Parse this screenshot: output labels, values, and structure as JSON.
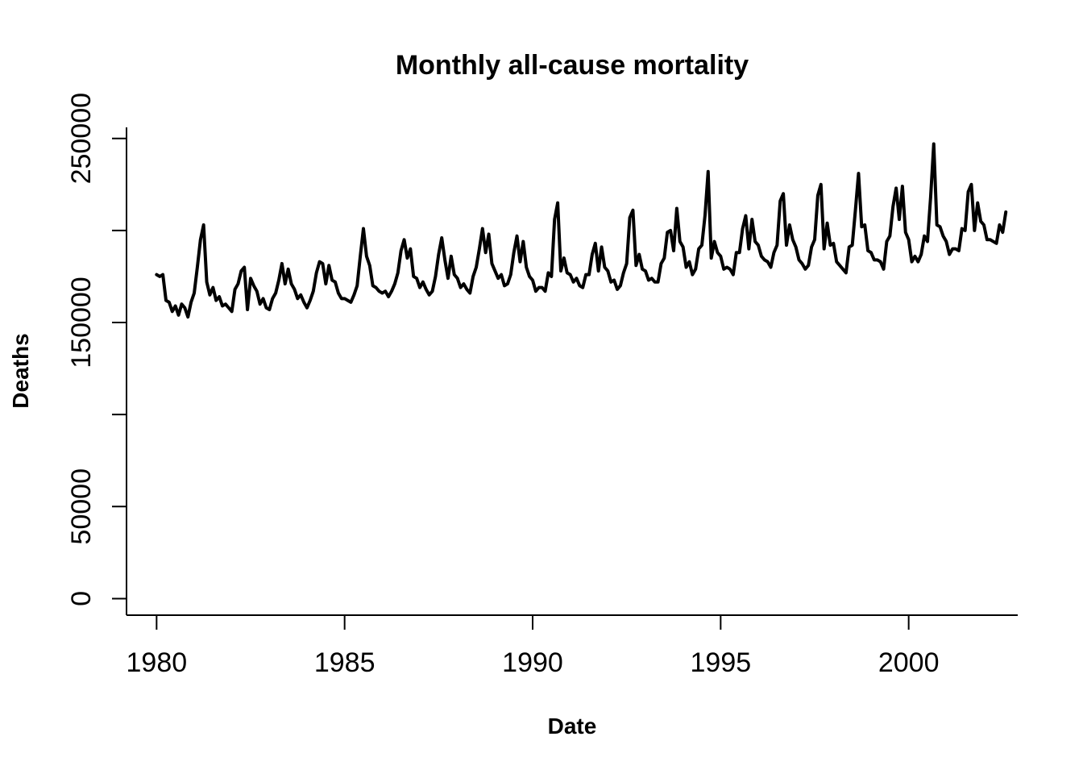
{
  "chart_data": {
    "type": "line",
    "title": "Monthly all-cause mortality",
    "xlabel": "Date",
    "ylabel": "Deaths",
    "xlim": [
      1979.2,
      2002.9
    ],
    "ylim": [
      -9000,
      256000
    ],
    "x_ticks": [
      1980,
      1985,
      1990,
      1995,
      2000
    ],
    "x_tick_labels": [
      "1980",
      "1985",
      "1990",
      "1995",
      "2000"
    ],
    "y_ticks": [
      0,
      50000,
      100000,
      150000,
      200000,
      250000
    ],
    "y_tick_labels": [
      "0",
      "50000",
      "",
      "150000",
      "",
      "250000"
    ],
    "grid": false,
    "legend": "none",
    "series_color": "#000000",
    "x_start": 1980.0,
    "x_step": 0.0833333,
    "series": [
      {
        "values": [
          176000,
          175000,
          176000,
          162000,
          161000,
          156000,
          159000,
          154000,
          160000,
          158000,
          153000,
          161000,
          166000,
          180000,
          195000,
          203000,
          172000,
          165000,
          169000,
          162000,
          164000,
          159000,
          160000,
          158000,
          156000,
          168000,
          171000,
          178000,
          180000,
          157000,
          174000,
          170000,
          167000,
          160000,
          163000,
          158000,
          157000,
          163000,
          166000,
          173000,
          182000,
          171000,
          179000,
          171000,
          168000,
          163000,
          165000,
          161000,
          158000,
          162000,
          167000,
          177000,
          183000,
          182000,
          171000,
          181000,
          173000,
          172000,
          166000,
          163000,
          163000,
          162000,
          161000,
          165000,
          170000,
          186000,
          201000,
          186000,
          181000,
          170000,
          169000,
          167000,
          166000,
          167000,
          164000,
          167000,
          171000,
          177000,
          189000,
          195000,
          185000,
          190000,
          175000,
          174000,
          169000,
          172000,
          168000,
          165000,
          167000,
          175000,
          187000,
          196000,
          184000,
          174000,
          186000,
          176000,
          174000,
          169000,
          171000,
          168000,
          166000,
          175000,
          180000,
          190000,
          201000,
          188000,
          198000,
          182000,
          178000,
          174000,
          176000,
          170000,
          171000,
          176000,
          188000,
          197000,
          183000,
          194000,
          180000,
          175000,
          173000,
          167000,
          169000,
          169000,
          167000,
          177000,
          175000,
          206000,
          215000,
          178000,
          185000,
          177000,
          176000,
          172000,
          174000,
          170000,
          169000,
          176000,
          176000,
          187000,
          193000,
          178000,
          191000,
          180000,
          178000,
          172000,
          173000,
          168000,
          170000,
          177000,
          182000,
          207000,
          211000,
          181000,
          187000,
          179000,
          178000,
          173000,
          174000,
          172000,
          172000,
          182000,
          185000,
          199000,
          200000,
          189000,
          212000,
          194000,
          191000,
          180000,
          183000,
          176000,
          179000,
          190000,
          192000,
          208000,
          232000,
          185000,
          194000,
          188000,
          186000,
          179000,
          180000,
          179000,
          176000,
          188000,
          188000,
          201000,
          208000,
          190000,
          206000,
          194000,
          192000,
          186000,
          184000,
          183000,
          180000,
          188000,
          192000,
          216000,
          220000,
          192000,
          203000,
          195000,
          191000,
          184000,
          182000,
          179000,
          181000,
          191000,
          195000,
          219000,
          225000,
          190000,
          204000,
          192000,
          193000,
          183000,
          181000,
          179000,
          177000,
          191000,
          192000,
          211000,
          231000,
          202000,
          203000,
          189000,
          188000,
          184000,
          184000,
          183000,
          179000,
          194000,
          197000,
          213000,
          223000,
          206000,
          224000,
          199000,
          195000,
          183000,
          186000,
          183000,
          187000,
          197000,
          194000,
          218000,
          247000,
          203000,
          202000,
          197000,
          194000,
          187000,
          190000,
          190000,
          189000,
          201000,
          200000,
          221000,
          225000,
          200000,
          215000,
          205000,
          203000,
          195000,
          195000,
          194000,
          193000,
          203000,
          199000,
          210000
        ]
      }
    ]
  }
}
